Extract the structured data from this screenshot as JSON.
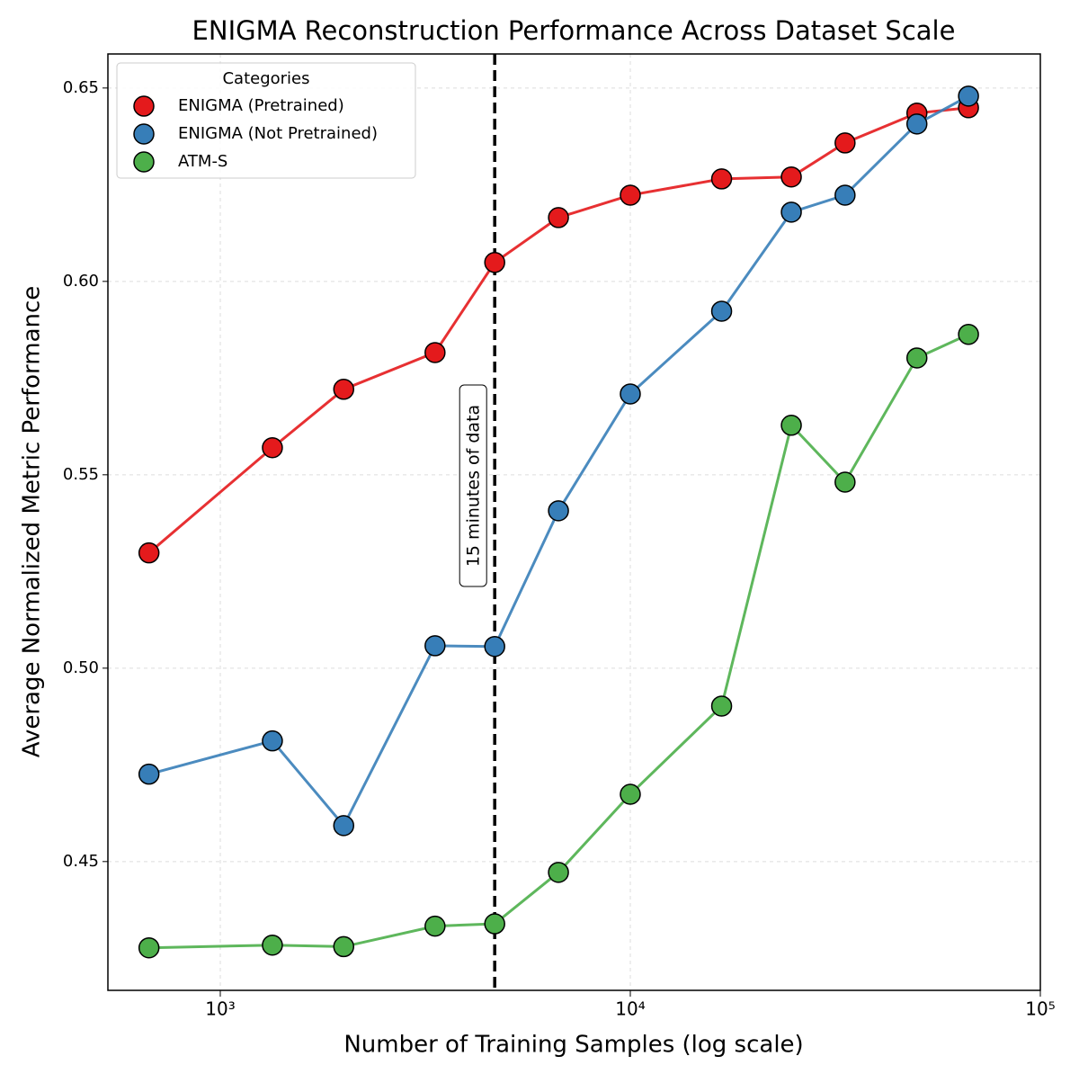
{
  "chart_data": {
    "type": "line",
    "title": "ENIGMA Reconstruction Performance Across Dataset Scale",
    "x_label": "Number of Training Samples (log scale)",
    "y_label": "Average Normalized Metric Performance",
    "x": [
      670,
      1340,
      2000,
      3340,
      4670,
      6680,
      10000,
      16700,
      24700,
      33400,
      50000,
      66800
    ],
    "series": [
      {
        "name": "ENIGMA (Pretrained)",
        "color": "#e41a1c",
        "values": [
          0.5298,
          0.557,
          0.5721,
          0.5816,
          0.6049,
          0.6165,
          0.6223,
          0.6265,
          0.627,
          0.6358,
          0.6435,
          0.6449
        ]
      },
      {
        "name": "ENIGMA (Not Pretrained)",
        "color": "#377eb8",
        "values": [
          0.4726,
          0.4812,
          0.4593,
          0.5058,
          0.5056,
          0.5407,
          0.5709,
          0.5923,
          0.6179,
          0.6223,
          0.6407,
          0.6479
        ]
      },
      {
        "name": "ATM-S",
        "color": "#4daf4a",
        "values": [
          0.4277,
          0.4284,
          0.428,
          0.4333,
          0.4339,
          0.4472,
          0.4674,
          0.4902,
          0.5628,
          0.5481,
          0.5802,
          0.5863
        ]
      }
    ],
    "xlim": [
      532,
      100000
    ],
    "x_log": true,
    "xticks": [
      {
        "value": 1000,
        "label": "10³"
      },
      {
        "value": 10000,
        "label": "10⁴"
      },
      {
        "value": 100000,
        "label": "10⁵"
      }
    ],
    "ylim": [
      0.4167,
      0.6588
    ],
    "yticks": [
      0.45,
      {
        "value": 0.5,
        "label": "0.50"
      },
      0.55,
      {
        "value": 0.6,
        "label": "0.60"
      },
      0.65
    ],
    "grid": true,
    "vline": {
      "x": 4670,
      "label": "15 minutes of data"
    },
    "legend_title": "Categories",
    "legend_position": "upper-left"
  }
}
